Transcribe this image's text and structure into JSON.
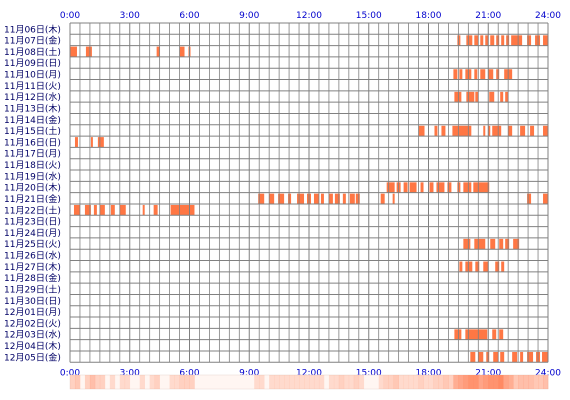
{
  "chart_data": {
    "type": "heatmap",
    "title": "",
    "xlabel": "",
    "ylabel": "",
    "x_ticks": [
      "0:00",
      "3:00",
      "6:00",
      "9:00",
      "12:00",
      "15:00",
      "18:00",
      "21:00",
      "24:00"
    ],
    "x_range_hours": [
      0,
      24
    ],
    "grid": true,
    "colors": {
      "bar": "#ff7744",
      "grid": "#808080",
      "label": "#0000cc",
      "summary_base": "#ffe8dc",
      "summary_hot": "#ff8a64"
    },
    "days": [
      {
        "label": "11月06日(木)",
        "intervals": []
      },
      {
        "label": "11月07日(金)",
        "intervals": [
          [
            19.45,
            19.6
          ],
          [
            19.9,
            20.2
          ],
          [
            20.3,
            20.5
          ],
          [
            20.6,
            20.75
          ],
          [
            20.85,
            21.0
          ],
          [
            21.1,
            21.3
          ],
          [
            21.4,
            21.55
          ],
          [
            21.65,
            21.8
          ],
          [
            21.9,
            22.05
          ],
          [
            22.15,
            22.7
          ],
          [
            22.95,
            23.15
          ],
          [
            23.35,
            23.6
          ],
          [
            23.75,
            24.0
          ]
        ]
      },
      {
        "label": "11月08日(土)",
        "intervals": [
          [
            0.0,
            0.35
          ],
          [
            0.8,
            1.1
          ],
          [
            4.35,
            4.5
          ],
          [
            5.5,
            5.75
          ],
          [
            5.95,
            6.05
          ]
        ]
      },
      {
        "label": "11月09日(日)",
        "intervals": []
      },
      {
        "label": "11月10日(月)",
        "intervals": [
          [
            19.25,
            19.45
          ],
          [
            19.55,
            19.7
          ],
          [
            19.85,
            20.15
          ],
          [
            20.3,
            20.45
          ],
          [
            20.6,
            20.85
          ],
          [
            21.0,
            21.25
          ],
          [
            21.4,
            21.55
          ],
          [
            21.8,
            22.2
          ]
        ]
      },
      {
        "label": "11月11日(火)",
        "intervals": []
      },
      {
        "label": "11月12日(水)",
        "intervals": [
          [
            19.3,
            19.65
          ],
          [
            19.9,
            20.3
          ],
          [
            20.35,
            20.5
          ],
          [
            21.05,
            21.3
          ],
          [
            21.6,
            21.75
          ],
          [
            21.85,
            22.0
          ]
        ]
      },
      {
        "label": "11月13日(木)",
        "intervals": []
      },
      {
        "label": "11月14日(金)",
        "intervals": []
      },
      {
        "label": "11月15日(土)",
        "intervals": [
          [
            17.5,
            17.8
          ],
          [
            18.3,
            18.45
          ],
          [
            18.65,
            18.85
          ],
          [
            19.2,
            20.15
          ],
          [
            20.75,
            20.85
          ],
          [
            21.0,
            21.1
          ],
          [
            21.2,
            21.65
          ],
          [
            22.0,
            22.2
          ],
          [
            22.6,
            22.85
          ],
          [
            23.1,
            23.3
          ],
          [
            23.75,
            24.0
          ]
        ]
      },
      {
        "label": "11月16日(日)",
        "intervals": [
          [
            0.25,
            0.4
          ],
          [
            1.05,
            1.15
          ],
          [
            1.4,
            1.7
          ]
        ]
      },
      {
        "label": "11月17日(月)",
        "intervals": []
      },
      {
        "label": "11月18日(火)",
        "intervals": []
      },
      {
        "label": "11月19日(水)",
        "intervals": []
      },
      {
        "label": "11月20日(木)",
        "intervals": [
          [
            15.9,
            16.3
          ],
          [
            16.4,
            16.6
          ],
          [
            16.75,
            16.95
          ],
          [
            17.05,
            17.4
          ],
          [
            17.6,
            17.75
          ],
          [
            18.05,
            18.25
          ],
          [
            18.4,
            18.8
          ],
          [
            18.95,
            19.15
          ],
          [
            19.45,
            19.6
          ],
          [
            19.75,
            20.15
          ],
          [
            20.25,
            21.05
          ]
        ]
      },
      {
        "label": "11月21日(金)",
        "intervals": [
          [
            9.45,
            9.75
          ],
          [
            10.0,
            10.25
          ],
          [
            10.45,
            10.75
          ],
          [
            10.95,
            11.1
          ],
          [
            11.4,
            11.75
          ],
          [
            11.9,
            12.1
          ],
          [
            12.25,
            12.5
          ],
          [
            12.6,
            12.75
          ],
          [
            13.0,
            13.2
          ],
          [
            13.3,
            13.55
          ],
          [
            13.7,
            13.85
          ],
          [
            14.05,
            14.3
          ],
          [
            14.35,
            14.55
          ],
          [
            15.6,
            15.8
          ],
          [
            16.2,
            16.3
          ],
          [
            22.95,
            23.15
          ],
          [
            23.75,
            24.0
          ]
        ]
      },
      {
        "label": "11月22日(土)",
        "intervals": [
          [
            0.2,
            0.5
          ],
          [
            0.75,
            1.05
          ],
          [
            1.2,
            1.35
          ],
          [
            1.5,
            1.75
          ],
          [
            2.05,
            2.25
          ],
          [
            2.5,
            2.8
          ],
          [
            3.65,
            3.75
          ],
          [
            4.2,
            4.4
          ],
          [
            5.05,
            6.25
          ]
        ]
      },
      {
        "label": "11月23日(日)",
        "intervals": []
      },
      {
        "label": "11月24日(月)",
        "intervals": []
      },
      {
        "label": "11月25日(火)",
        "intervals": [
          [
            19.75,
            20.1
          ],
          [
            20.3,
            20.85
          ],
          [
            21.1,
            21.35
          ],
          [
            21.55,
            21.75
          ],
          [
            21.85,
            22.05
          ],
          [
            22.25,
            22.55
          ]
        ]
      },
      {
        "label": "11月26日(水)",
        "intervals": []
      },
      {
        "label": "11月27日(木)",
        "intervals": [
          [
            19.55,
            19.7
          ],
          [
            19.85,
            20.2
          ],
          [
            20.35,
            20.55
          ],
          [
            20.75,
            21.0
          ],
          [
            21.35,
            21.55
          ],
          [
            21.65,
            21.8
          ]
        ]
      },
      {
        "label": "11月28日(金)",
        "intervals": []
      },
      {
        "label": "11月29日(土)",
        "intervals": []
      },
      {
        "label": "11月30日(日)",
        "intervals": []
      },
      {
        "label": "12月01日(月)",
        "intervals": []
      },
      {
        "label": "12月02日(火)",
        "intervals": []
      },
      {
        "label": "12月03日(水)",
        "intervals": [
          [
            19.3,
            19.65
          ],
          [
            19.85,
            20.95
          ],
          [
            21.2,
            21.4
          ],
          [
            21.55,
            21.75
          ]
        ]
      },
      {
        "label": "12月04日(木)",
        "intervals": []
      },
      {
        "label": "12月05日(金)",
        "intervals": [
          [
            20.1,
            20.35
          ],
          [
            20.5,
            20.75
          ],
          [
            20.9,
            21.05
          ],
          [
            21.25,
            21.5
          ],
          [
            21.6,
            21.8
          ],
          [
            22.2,
            22.45
          ],
          [
            22.6,
            22.75
          ],
          [
            22.95,
            23.25
          ],
          [
            23.4,
            23.6
          ],
          [
            23.7,
            24.0
          ]
        ]
      }
    ]
  }
}
